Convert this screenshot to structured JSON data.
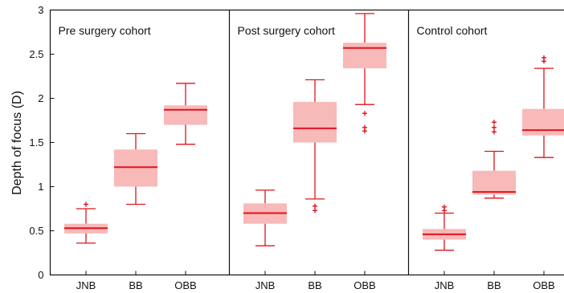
{
  "chart_data": {
    "type": "box",
    "ylabel": "Depth of focus (D)",
    "ylim": [
      0,
      3
    ],
    "yticks": [
      "0",
      "0.5",
      "1",
      "1.5",
      "2",
      "2.5",
      "3"
    ],
    "colors": {
      "box_fill": "#f8b9b9",
      "accent": "#e0141c",
      "axis": "#111111"
    },
    "panels": [
      {
        "title": "Pre surgery cohort",
        "categories": [
          "JNB",
          "BB",
          "OBB"
        ],
        "boxes": [
          {
            "category": "JNB",
            "whisker_low": 0.36,
            "q1": 0.47,
            "median": 0.53,
            "q3": 0.58,
            "whisker_high": 0.75,
            "outliers": [
              0.8
            ]
          },
          {
            "category": "BB",
            "whisker_low": 0.8,
            "q1": 1.0,
            "median": 1.22,
            "q3": 1.42,
            "whisker_high": 1.6,
            "outliers": []
          },
          {
            "category": "OBB",
            "whisker_low": 1.48,
            "q1": 1.7,
            "median": 1.87,
            "q3": 1.92,
            "whisker_high": 2.17,
            "outliers": []
          }
        ]
      },
      {
        "title": "Post surgery cohort",
        "categories": [
          "JNB",
          "BB",
          "OBB"
        ],
        "boxes": [
          {
            "category": "JNB",
            "whisker_low": 0.33,
            "q1": 0.58,
            "median": 0.7,
            "q3": 0.81,
            "whisker_high": 0.96,
            "outliers": []
          },
          {
            "category": "BB",
            "whisker_low": 0.86,
            "q1": 1.5,
            "median": 1.66,
            "q3": 1.96,
            "whisker_high": 2.21,
            "outliers": [
              0.78,
              0.73
            ]
          },
          {
            "category": "OBB",
            "whisker_low": 1.93,
            "q1": 2.34,
            "median": 2.57,
            "q3": 2.63,
            "whisker_high": 2.96,
            "outliers": [
              1.83,
              1.67,
              1.63
            ]
          }
        ]
      },
      {
        "title": "Control cohort",
        "categories": [
          "JNB",
          "BB",
          "OBB"
        ],
        "boxes": [
          {
            "category": "JNB",
            "whisker_low": 0.28,
            "q1": 0.4,
            "median": 0.46,
            "q3": 0.52,
            "whisker_high": 0.7,
            "outliers": [
              0.73,
              0.77
            ]
          },
          {
            "category": "BB",
            "whisker_low": 0.87,
            "q1": 0.91,
            "median": 0.94,
            "q3": 1.18,
            "whisker_high": 1.4,
            "outliers": [
              1.62,
              1.67,
              1.73
            ]
          },
          {
            "category": "OBB",
            "whisker_low": 1.33,
            "q1": 1.58,
            "median": 1.64,
            "q3": 1.88,
            "whisker_high": 2.34,
            "outliers": [
              2.42,
              2.46
            ]
          }
        ]
      }
    ]
  }
}
